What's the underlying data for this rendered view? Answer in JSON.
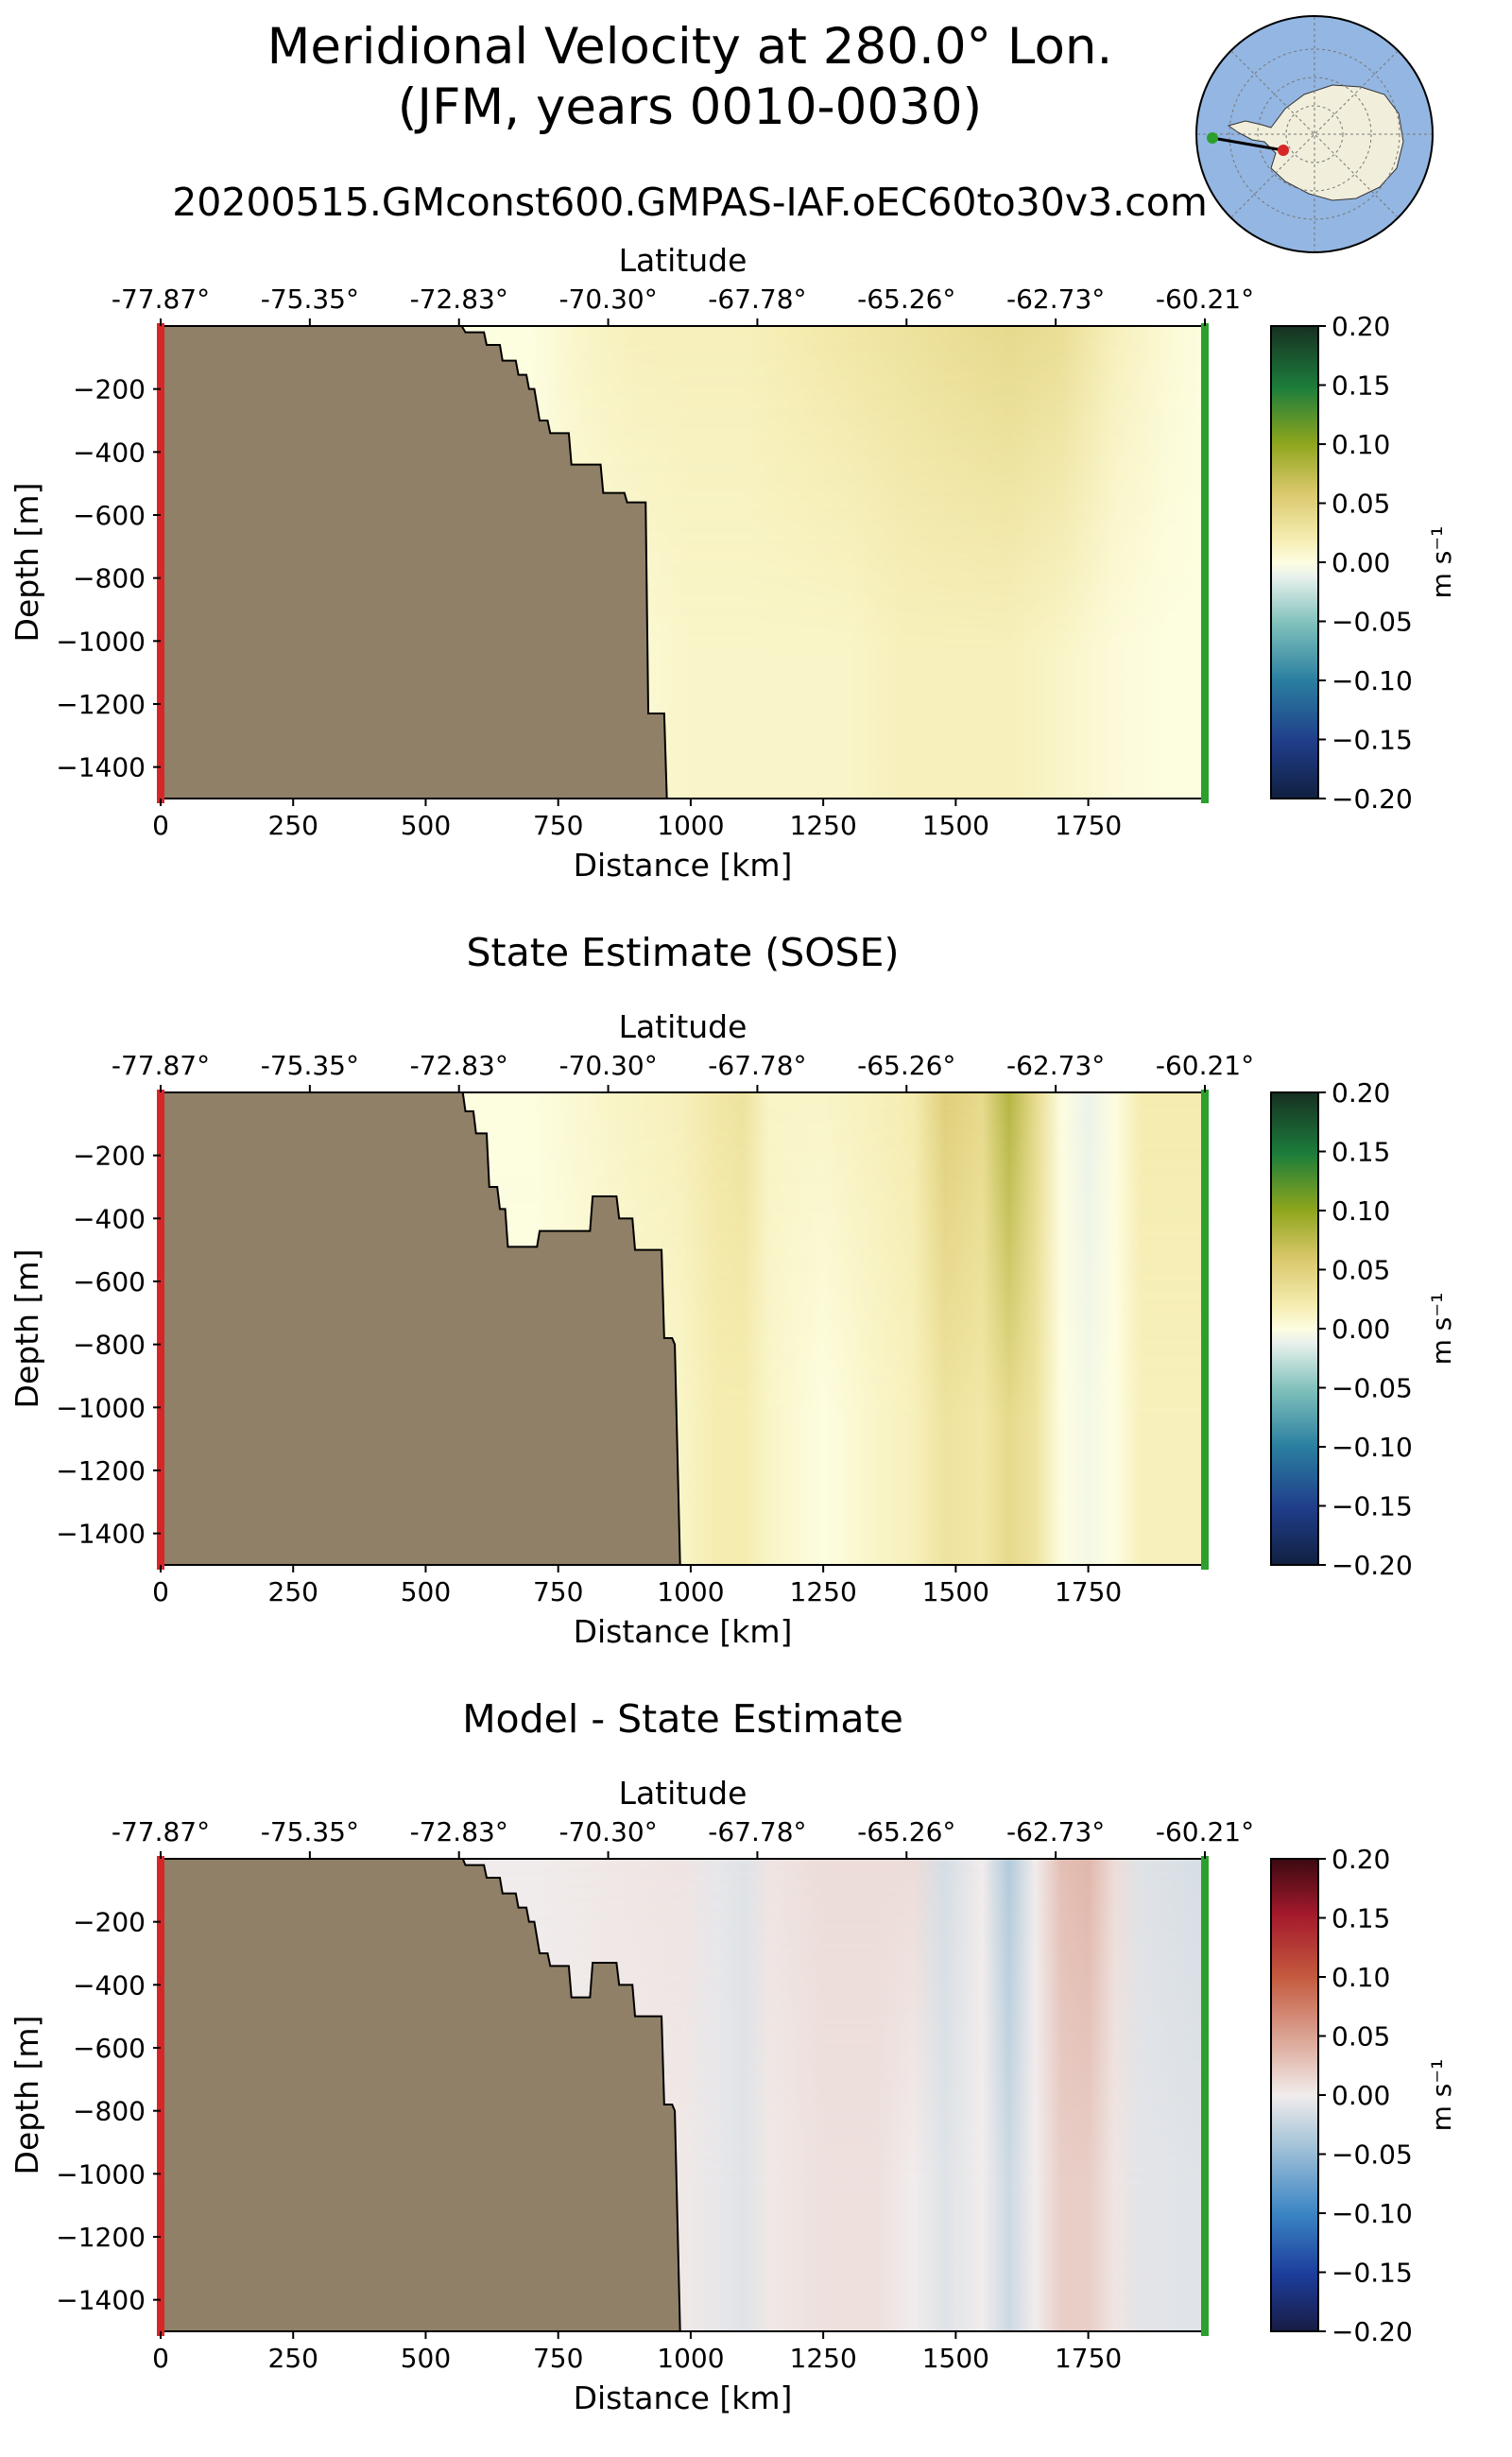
{
  "header": {
    "title_line1": "Meridional Velocity at 280.0° Lon.",
    "title_line2": "(JFM, years 0010-0030)",
    "run_name": "20200515.GMconst600.GMPAS-IAF.oEC60to30v3.com"
  },
  "colors": {
    "land": "#8f8067",
    "section_start": "#d62728",
    "section_end": "#2ca02c",
    "ocean_map": "#94b6e2",
    "continent_map": "#f1eedb"
  },
  "chart_data": [
    {
      "type": "heatmap",
      "id": "model",
      "title": "",
      "xlabel": "Distance [km]",
      "ylabel": "Depth [m]",
      "top_axis_label": "Latitude",
      "xlim": [
        0,
        1970
      ],
      "ylim": [
        -1500,
        0
      ],
      "x_ticks": [
        "0",
        "250",
        "500",
        "750",
        "1000",
        "1250",
        "1500",
        "1750"
      ],
      "y_ticks": [
        "−200",
        "−400",
        "−600",
        "−800",
        "−1000",
        "−1200",
        "−1400"
      ],
      "lat_ticks": [
        "-77.87°",
        "-75.35°",
        "-72.83°",
        "-70.30°",
        "-67.78°",
        "-65.26°",
        "-62.73°",
        "-60.21°"
      ],
      "colorbar": {
        "label": "m s⁻¹",
        "colormap": "delta",
        "ticks": [
          "0.20",
          "0.15",
          "0.10",
          "0.05",
          "0.00",
          "−0.05",
          "−0.10",
          "−0.15",
          "−0.20"
        ]
      },
      "bathymetry": [
        [
          0,
          0
        ],
        [
          568,
          0
        ],
        [
          575,
          -20
        ],
        [
          610,
          -20
        ],
        [
          615,
          -60
        ],
        [
          640,
          -60
        ],
        [
          645,
          -110
        ],
        [
          670,
          -110
        ],
        [
          675,
          -155
        ],
        [
          690,
          -155
        ],
        [
          695,
          -200
        ],
        [
          705,
          -200
        ],
        [
          710,
          -250
        ],
        [
          715,
          -300
        ],
        [
          730,
          -300
        ],
        [
          735,
          -340
        ],
        [
          770,
          -340
        ],
        [
          775,
          -440
        ],
        [
          830,
          -440
        ],
        [
          835,
          -530
        ],
        [
          875,
          -530
        ],
        [
          880,
          -560
        ],
        [
          915,
          -560
        ],
        [
          920,
          -1230
        ],
        [
          950,
          -1230
        ],
        [
          955,
          -1500
        ]
      ],
      "velocity_profile": {
        "x_km": [
          700,
          800,
          900,
          1000,
          1100,
          1200,
          1300,
          1400,
          1500,
          1600,
          1700,
          1800,
          1900,
          1970
        ],
        "surface_m_s": [
          0.0,
          0.01,
          0.015,
          0.015,
          0.015,
          0.02,
          0.025,
          0.03,
          0.035,
          0.04,
          0.035,
          0.015,
          0.005,
          0.0
        ],
        "deep_m_s": [
          0.0,
          0.005,
          0.005,
          0.01,
          0.01,
          0.01,
          0.01,
          0.015,
          0.015,
          0.015,
          0.01,
          0.003,
          0.0,
          0.0
        ]
      }
    },
    {
      "type": "heatmap",
      "id": "sose",
      "title": "State Estimate (SOSE)",
      "xlabel": "Distance [km]",
      "ylabel": "Depth [m]",
      "top_axis_label": "Latitude",
      "xlim": [
        0,
        1970
      ],
      "ylim": [
        -1500,
        0
      ],
      "x_ticks": [
        "0",
        "250",
        "500",
        "750",
        "1000",
        "1250",
        "1500",
        "1750"
      ],
      "y_ticks": [
        "−200",
        "−400",
        "−600",
        "−800",
        "−1000",
        "−1200",
        "−1400"
      ],
      "lat_ticks": [
        "-77.87°",
        "-75.35°",
        "-72.83°",
        "-70.30°",
        "-67.78°",
        "-65.26°",
        "-62.73°",
        "-60.21°"
      ],
      "colorbar": {
        "label": "m s⁻¹",
        "colormap": "delta",
        "ticks": [
          "0.20",
          "0.15",
          "0.10",
          "0.05",
          "0.00",
          "−0.05",
          "−0.10",
          "−0.15",
          "−0.20"
        ]
      },
      "bathymetry": [
        [
          0,
          0
        ],
        [
          570,
          0
        ],
        [
          575,
          -60
        ],
        [
          590,
          -60
        ],
        [
          595,
          -130
        ],
        [
          615,
          -130
        ],
        [
          620,
          -300
        ],
        [
          635,
          -300
        ],
        [
          640,
          -370
        ],
        [
          650,
          -370
        ],
        [
          655,
          -490
        ],
        [
          710,
          -490
        ],
        [
          715,
          -440
        ],
        [
          810,
          -440
        ],
        [
          815,
          -330
        ],
        [
          860,
          -330
        ],
        [
          865,
          -400
        ],
        [
          890,
          -400
        ],
        [
          895,
          -500
        ],
        [
          945,
          -500
        ],
        [
          950,
          -780
        ],
        [
          965,
          -780
        ],
        [
          970,
          -800
        ],
        [
          980,
          -1500
        ]
      ],
      "velocity_profile": {
        "x_km": [
          700,
          850,
          980,
          1050,
          1100,
          1150,
          1250,
          1350,
          1420,
          1480,
          1550,
          1600,
          1650,
          1700,
          1750,
          1800,
          1850,
          1970
        ],
        "surface_m_s": [
          0.0,
          0.01,
          0.015,
          0.025,
          0.03,
          0.01,
          0.01,
          0.015,
          0.02,
          0.05,
          0.04,
          0.08,
          0.04,
          0.0,
          -0.01,
          0.0,
          0.02,
          0.02
        ],
        "deep_m_s": [
          0.0,
          0.005,
          0.01,
          0.02,
          0.02,
          0.01,
          0.0,
          0.01,
          0.015,
          0.03,
          0.025,
          0.04,
          0.03,
          0.0,
          -0.005,
          0.0,
          0.015,
          0.015
        ]
      }
    },
    {
      "type": "heatmap",
      "id": "difference",
      "title": "Model - State Estimate",
      "xlabel": "Distance [km]",
      "ylabel": "Depth [m]",
      "top_axis_label": "Latitude",
      "xlim": [
        0,
        1970
      ],
      "ylim": [
        -1500,
        0
      ],
      "x_ticks": [
        "0",
        "250",
        "500",
        "750",
        "1000",
        "1250",
        "1500",
        "1750"
      ],
      "y_ticks": [
        "−200",
        "−400",
        "−600",
        "−800",
        "−1000",
        "−1200",
        "−1400"
      ],
      "lat_ticks": [
        "-77.87°",
        "-75.35°",
        "-72.83°",
        "-70.30°",
        "-67.78°",
        "-65.26°",
        "-62.73°",
        "-60.21°"
      ],
      "colorbar": {
        "label": "m s⁻¹",
        "colormap": "balance",
        "ticks": [
          "0.20",
          "0.15",
          "0.10",
          "0.05",
          "0.00",
          "−0.05",
          "−0.10",
          "−0.15",
          "−0.20"
        ]
      },
      "bathymetry": [
        [
          0,
          0
        ],
        [
          570,
          0
        ],
        [
          575,
          -20
        ],
        [
          610,
          -20
        ],
        [
          615,
          -60
        ],
        [
          640,
          -60
        ],
        [
          645,
          -110
        ],
        [
          670,
          -110
        ],
        [
          675,
          -155
        ],
        [
          690,
          -155
        ],
        [
          695,
          -200
        ],
        [
          705,
          -200
        ],
        [
          710,
          -250
        ],
        [
          715,
          -300
        ],
        [
          730,
          -300
        ],
        [
          735,
          -340
        ],
        [
          770,
          -340
        ],
        [
          775,
          -440
        ],
        [
          810,
          -440
        ],
        [
          815,
          -330
        ],
        [
          860,
          -330
        ],
        [
          865,
          -400
        ],
        [
          890,
          -400
        ],
        [
          895,
          -500
        ],
        [
          945,
          -500
        ],
        [
          950,
          -780
        ],
        [
          965,
          -780
        ],
        [
          970,
          -800
        ],
        [
          980,
          -1500
        ]
      ],
      "velocity_profile": {
        "x_km": [
          700,
          850,
          980,
          1050,
          1100,
          1150,
          1250,
          1350,
          1420,
          1480,
          1550,
          1600,
          1650,
          1700,
          1750,
          1800,
          1850,
          1970
        ],
        "surface_m_s": [
          0.0,
          0.003,
          0.005,
          -0.005,
          -0.01,
          0.005,
          0.01,
          0.01,
          0.01,
          -0.015,
          0.0,
          -0.035,
          0.0,
          0.03,
          0.035,
          0.01,
          -0.01,
          -0.015
        ],
        "deep_m_s": [
          0.0,
          0.002,
          0.003,
          -0.005,
          -0.01,
          0.003,
          0.008,
          0.008,
          0.0,
          -0.01,
          0.0,
          -0.02,
          0.0,
          0.02,
          0.02,
          0.005,
          -0.008,
          -0.01
        ]
      }
    }
  ]
}
